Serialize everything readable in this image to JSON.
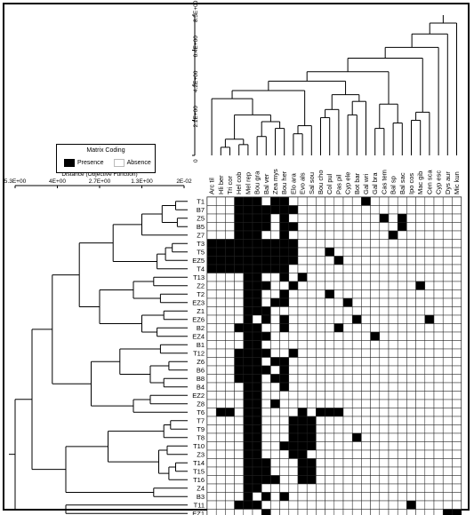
{
  "legend": {
    "title": "Matrix Coding",
    "presence": "Presence",
    "absence": "Absence"
  },
  "distance_axis": {
    "title": "Distance (Objective Function)",
    "ticks": [
      "5.3E+00",
      "4E+00",
      "2.7E+00",
      "1.3E+00",
      "2E-02"
    ]
  },
  "top_axis": {
    "ticks": [
      "0",
      "2.1E+00",
      "4.2E+00",
      "6.4E+00",
      "8.5E+00"
    ]
  },
  "species": [
    "Arc til",
    "Hli ber",
    "Tri cor",
    "Hel cob",
    "Mel rep",
    "Bou gra",
    "Bal ver",
    "Zea mys",
    "Bou her",
    "Elo ara",
    "Evo als",
    "Sal sou",
    "Bou cho",
    "Col pul",
    "Pas pil",
    "Cyp ele",
    "Bot bar",
    "Gal wri",
    "Gal bra",
    "Cas tem",
    "Bal sp",
    "Bal sac",
    "Ipo cos",
    "Mac gib",
    "Cen sca",
    "Cyp esc",
    "Dys aur",
    "Mic kun"
  ],
  "sites": [
    "T1",
    "B7",
    "Z5",
    "B5",
    "Z7",
    "T3",
    "T5",
    "EZ5",
    "T4",
    "T13",
    "Z2",
    "T2",
    "EZ3",
    "Z1",
    "EZ6",
    "B2",
    "EZ4",
    "B1",
    "T12",
    "Z6",
    "B6",
    "B8",
    "B4",
    "EZ2",
    "Z8",
    "T6",
    "T7",
    "T9",
    "T8",
    "T10",
    "Z3",
    "T14",
    "T15",
    "T16",
    "Z4",
    "B3",
    "T11",
    "EZ1"
  ],
  "matrix": [
    "0001110110000000010000000000",
    "0001111111000000000000000000",
    "0001111010000000000101000000",
    "0001111011000000000001000000",
    "0001110010000000000010000000",
    "1111111111000000000000000000",
    "1111111111000100000000000000",
    "1111111111000010000000000000",
    "1111111110000000000000000000",
    "0000110010100000000000000000",
    "0000111001000000000000010000",
    "0000110010000100000000000000",
    "0000110110000001000000000000",
    "0000111000000000000000000000",
    "0000101010000000100000001000",
    "0001110010000010000000000000",
    "0000111000000000001000000000",
    "0000110000000000000000000000",
    "0001111001000000000000000000",
    "0001110110000000000000000000",
    "0001111010000000000000000000",
    "0001110110000000000000000000",
    "0000110010000000000000000000",
    "0000110000000000000000000000",
    "0000110100000000000000000000",
    "0110110000101110000000000000",
    "0000110001110000000000000000",
    "0000110001110000000000000000",
    "0000110001110000100000000000",
    "0000110011110000000000000000",
    "0000110001100000000000000000",
    "0000111000110000000000000000",
    "0000111000110000000000000000",
    "0000111100110000000000000000",
    "0000110000000000000000000000",
    "0000101010000000000000000000",
    "0001110000000000000000100000",
    "0000001000000000000000000011"
  ]
}
